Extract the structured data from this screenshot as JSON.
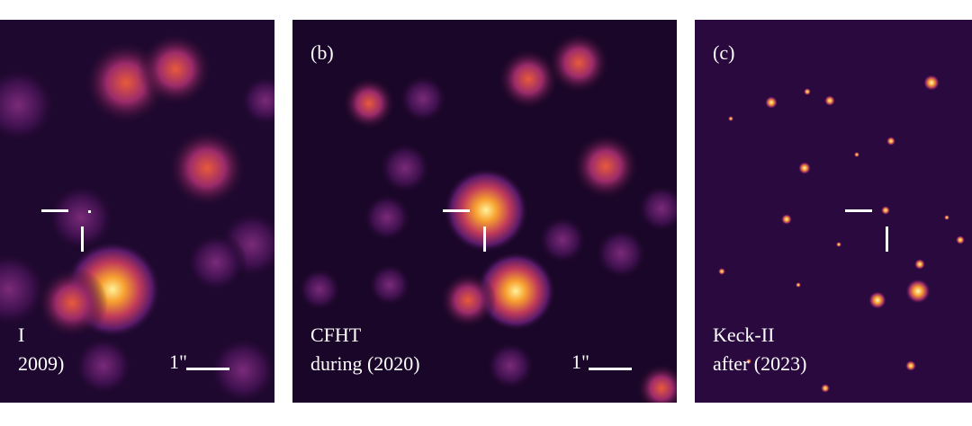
{
  "panels": [
    {
      "id": "a",
      "letter": "",
      "caption_line1": "I",
      "caption_line2": "2009)",
      "scale_label": "1\""
    },
    {
      "id": "b",
      "letter": "(b)",
      "caption_line1": "CFHT",
      "caption_line2": "during (2020)",
      "scale_label": "1\""
    },
    {
      "id": "c",
      "letter": "(c)",
      "caption_line1": "Keck-II",
      "caption_line2": "after (2023)",
      "scale_label": ""
    }
  ],
  "colors": {
    "background": "#13051e",
    "marker": "#ffffff"
  }
}
